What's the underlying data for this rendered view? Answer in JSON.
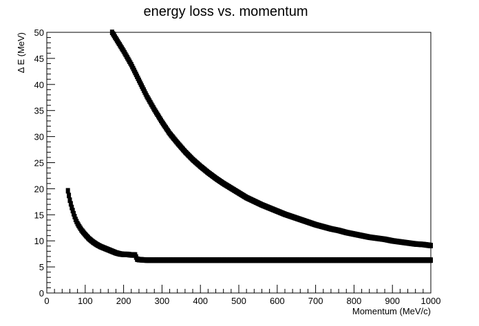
{
  "chart_data": {
    "type": "scatter",
    "title": "energy loss vs. momentum",
    "xlabel": "Momentum (MeV/c)",
    "ylabel": "Δ E (MeV)",
    "xlim": [
      0,
      1000
    ],
    "ylim": [
      0,
      50
    ],
    "xticks": [
      0,
      100,
      200,
      300,
      400,
      500,
      600,
      700,
      800,
      900,
      1000
    ],
    "yticks": [
      0,
      5,
      10,
      15,
      20,
      25,
      30,
      35,
      40,
      45,
      50
    ],
    "grid": false,
    "legend": "none",
    "marker_color": "#000000",
    "series": [
      {
        "x": [
          170,
          180,
          190,
          200,
          210,
          220,
          230,
          240,
          250,
          260,
          270,
          280,
          290,
          300,
          320,
          340,
          360,
          380,
          400,
          420,
          440,
          460,
          480,
          500,
          520,
          540,
          560,
          580,
          600,
          620,
          640,
          660,
          680,
          700,
          720,
          740,
          760,
          780,
          800,
          820,
          840,
          860,
          880,
          900,
          920,
          940,
          960,
          980,
          1000
        ],
        "y": [
          50,
          48.8,
          47.6,
          46.4,
          45.1,
          43.8,
          42.3,
          40.8,
          39.3,
          37.8,
          36.5,
          35.2,
          34,
          32.8,
          30.6,
          28.8,
          27.1,
          25.6,
          24.3,
          23.1,
          22,
          21,
          20.1,
          19.2,
          18.3,
          17.6,
          16.9,
          16.3,
          15.7,
          15.1,
          14.6,
          14.1,
          13.6,
          13.1,
          12.7,
          12.3,
          12,
          11.6,
          11.3,
          11,
          10.7,
          10.5,
          10.3,
          10,
          9.8,
          9.6,
          9.4,
          9.3,
          9.1
        ]
      },
      {
        "x": [
          55,
          60,
          65,
          70,
          75,
          80,
          90,
          100,
          110,
          120,
          130,
          140,
          150,
          160,
          170,
          180,
          190,
          200,
          210,
          220,
          230,
          235,
          240,
          260,
          280,
          300,
          350,
          400,
          450,
          500,
          550,
          600,
          650,
          700,
          750,
          800,
          850,
          900,
          950,
          1000
        ],
        "y": [
          19.6,
          17.8,
          16.4,
          15.2,
          14.1,
          13.3,
          12.1,
          11.2,
          10.4,
          9.8,
          9.3,
          8.9,
          8.6,
          8.3,
          8.0,
          7.7,
          7.5,
          7.4,
          7.4,
          7.3,
          7.3,
          6.5,
          6.4,
          6.3,
          6.3,
          6.3,
          6.3,
          6.3,
          6.3,
          6.3,
          6.3,
          6.3,
          6.3,
          6.3,
          6.3,
          6.3,
          6.3,
          6.3,
          6.3,
          6.3
        ]
      }
    ]
  }
}
